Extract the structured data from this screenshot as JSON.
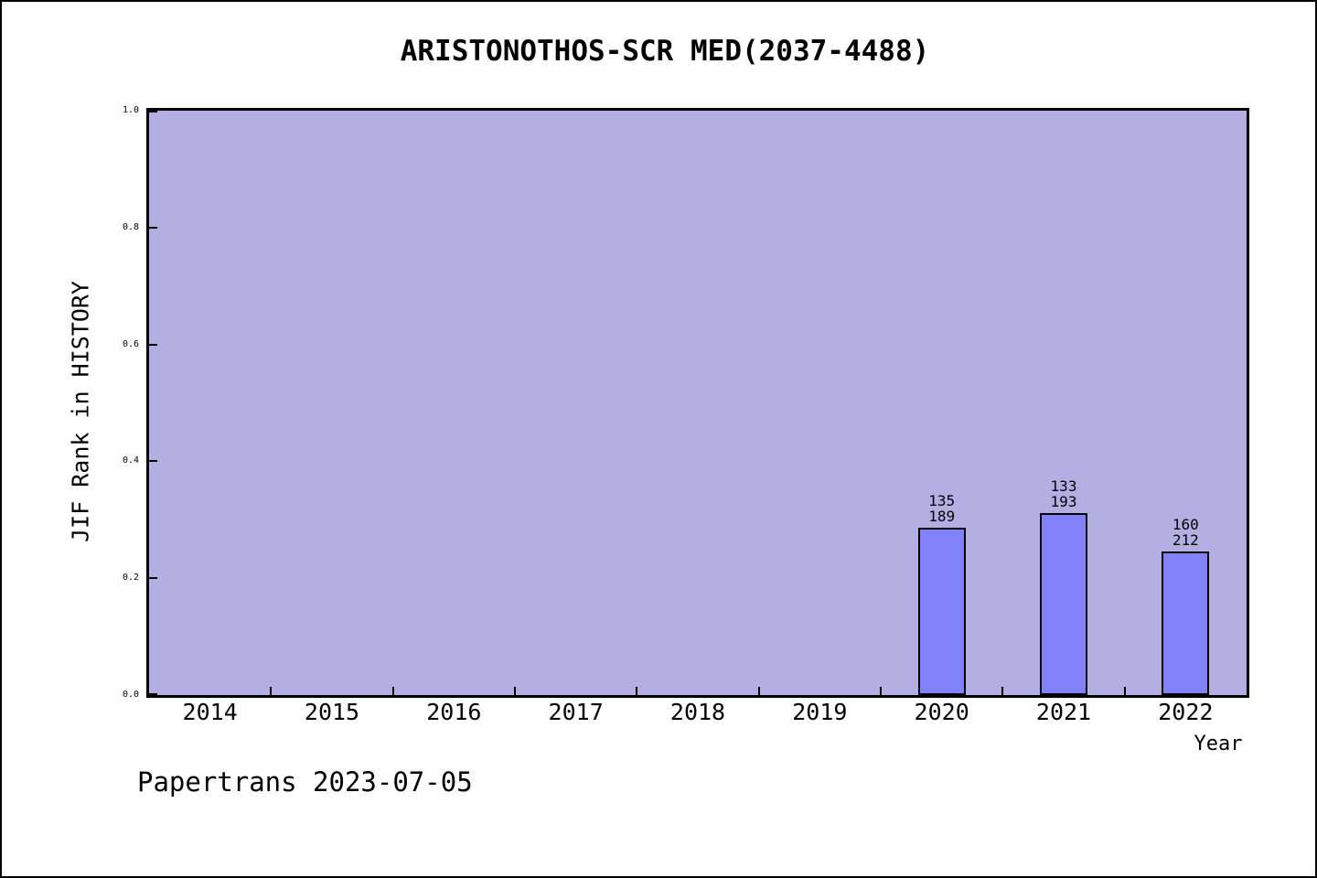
{
  "figure": {
    "title": "ARISTONOTHOS-SCR MED(2037-4488)",
    "footer": "Papertrans 2023-07-05"
  },
  "chart_data": {
    "type": "bar",
    "title": "ARISTONOTHOS-SCR MED(2037-4488)",
    "xlabel": "Year",
    "ylabel": "JIF Rank in HISTORY",
    "x_categories": [
      2014,
      2015,
      2016,
      2017,
      2018,
      2019,
      2020,
      2021,
      2022
    ],
    "x_domain": [
      2013.5,
      2022.5
    ],
    "ylim": [
      0.0,
      1.0
    ],
    "ytick_labels": [
      "0.0",
      "0.2",
      "0.4",
      "0.6",
      "0.8",
      "1.0"
    ],
    "grid": false,
    "legend": null,
    "plot_bg_color": "#b4afe3",
    "bar_color": "#8181fa",
    "bar_edge_color": "#000000",
    "bars": [
      {
        "year": 2020,
        "rank": 135,
        "total": 189,
        "label_lines": [
          "135",
          "189"
        ],
        "bar_height_fraction": 0.2857
      },
      {
        "year": 2021,
        "rank": 133,
        "total": 193,
        "label_lines": [
          "133",
          "193"
        ],
        "bar_height_fraction": 0.3109
      },
      {
        "year": 2022,
        "rank": 160,
        "total": 212,
        "label_lines": [
          "160",
          "212"
        ],
        "bar_height_fraction": 0.2453
      }
    ]
  }
}
